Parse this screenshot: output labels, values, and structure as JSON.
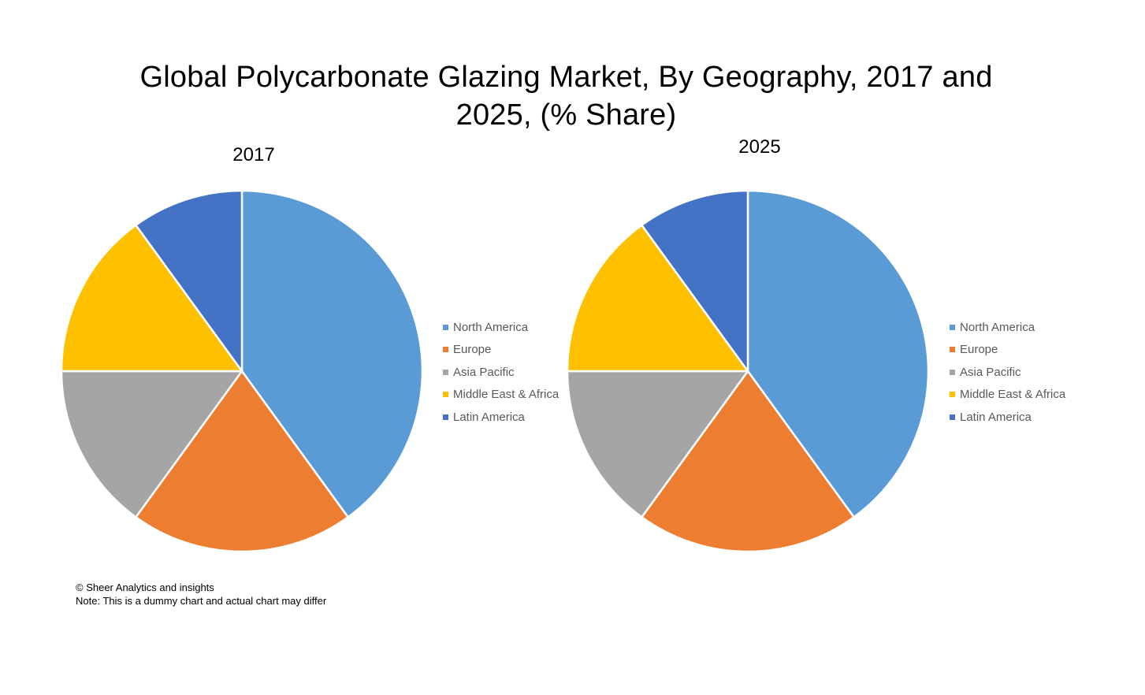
{
  "title_line1": "Global Polycarbonate Glazing Market, By Geography, 2017 and",
  "title_line2": "2025, (% Share)",
  "footer": {
    "copyright": "© Sheer Analytics and insights",
    "note": "Note: This is a dummy chart and actual chart may differ"
  },
  "chart_data": [
    {
      "type": "pie",
      "title": "2017",
      "categories": [
        "North America",
        "Europe",
        "Asia Pacific",
        "Middle East & Africa",
        "Latin America"
      ],
      "values": [
        40,
        20,
        15,
        15,
        10
      ],
      "colors": [
        "#5B9BD5",
        "#ED7D31",
        "#A5A5A5",
        "#FFC000",
        "#4472C4"
      ],
      "legend_position": "right"
    },
    {
      "type": "pie",
      "title": "2025",
      "categories": [
        "North America",
        "Europe",
        "Asia Pacific",
        "Middle East & Africa",
        "Latin America"
      ],
      "values": [
        40,
        20,
        15,
        15,
        10
      ],
      "colors": [
        "#5B9BD5",
        "#ED7D31",
        "#A5A5A5",
        "#FFC000",
        "#4472C4"
      ],
      "legend_position": "right"
    }
  ]
}
